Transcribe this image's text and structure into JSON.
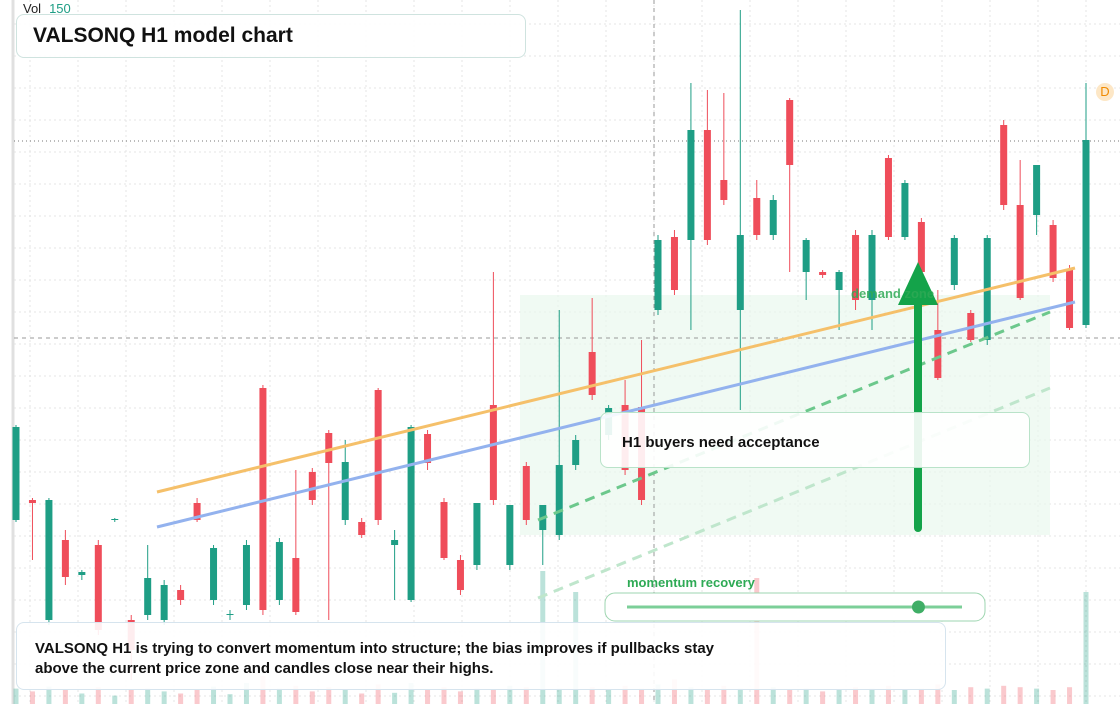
{
  "chart_data": {
    "type": "candlestick",
    "title": "VALSONQ H1 model chart",
    "volume_label": "Vol",
    "volume_value": 150,
    "badge": "D",
    "ylim": [
      60,
      130
    ],
    "volume_lim": [
      0,
      200
    ],
    "up_color": "#1e9e85",
    "down_color": "#ef4d5a",
    "grid": true,
    "crosshair": 96.2,
    "open": [
      78,
      80,
      68,
      76,
      72.5,
      75.5,
      78,
      68,
      68.5,
      68,
      71,
      79.7,
      70,
      68.5,
      69.5,
      91.2,
      70,
      74.2,
      82.8,
      86.7,
      78,
      77.8,
      91,
      75.5,
      70,
      86.6,
      79.8,
      74,
      73.5,
      89.5,
      73.5,
      83.4,
      77,
      76.5,
      83.5,
      94.8,
      86.5,
      89.5,
      89.3,
      99,
      106.3,
      106,
      117,
      112,
      99,
      110.2,
      106.5,
      120,
      102.8,
      102.8,
      101,
      106.5,
      100,
      114.2,
      106.3,
      107.8,
      97,
      101.5,
      98.7,
      96,
      117.5,
      109.5,
      108.5,
      107.5,
      103,
      97.5
    ],
    "high": [
      87.5,
      80.2,
      80.2,
      77,
      73,
      76,
      78.2,
      68.5,
      75.5,
      72,
      71.5,
      80.2,
      75.5,
      69,
      76,
      91.5,
      76.2,
      83,
      83.2,
      87,
      86,
      78.2,
      91.2,
      77,
      87.5,
      87,
      80.2,
      74.5,
      79.7,
      102.8,
      79.5,
      83.8,
      79.5,
      99,
      86.5,
      100.2,
      89.5,
      92,
      96,
      106.5,
      107,
      121.7,
      121,
      120.7,
      129,
      112,
      110.5,
      120.2,
      106.2,
      103,
      103,
      107,
      107,
      114.5,
      112,
      108.2,
      101,
      106.5,
      99,
      106.5,
      118,
      114,
      113.5,
      108,
      103.5,
      121.7
    ],
    "low": [
      77.8,
      74,
      67.5,
      71.5,
      72,
      66.5,
      77.8,
      62,
      68,
      67.5,
      69.5,
      77.8,
      69.5,
      68,
      69,
      68.5,
      69.5,
      68.5,
      79.5,
      68,
      77.5,
      76.2,
      77.5,
      70,
      69.8,
      83,
      74,
      70.5,
      73,
      79.5,
      73,
      77.5,
      73.5,
      76,
      83,
      90,
      86,
      82.5,
      79.5,
      98.5,
      100.5,
      97,
      105.5,
      109.5,
      89,
      106,
      106,
      102.8,
      100,
      102.2,
      97,
      99,
      97,
      106,
      106,
      102.5,
      92,
      101,
      95.8,
      95.5,
      109,
      100,
      106.5,
      101.8,
      97,
      97.2
    ],
    "close": [
      87.3,
      79.7,
      80,
      72.3,
      72.8,
      67,
      78.1,
      65,
      72.2,
      71.5,
      70,
      78,
      75.2,
      68.6,
      75.5,
      69,
      75.8,
      68.8,
      80,
      83.7,
      83.8,
      76.5,
      78,
      76,
      87.3,
      83.7,
      74.2,
      71,
      79.7,
      80,
      79.5,
      78,
      79.5,
      83.5,
      86,
      90.5,
      89.2,
      83,
      80,
      106,
      101,
      117,
      106,
      110,
      106.5,
      106.5,
      110,
      113.5,
      106,
      102.5,
      102.8,
      100,
      106.5,
      106.3,
      111.7,
      102.8,
      92.2,
      106.2,
      96,
      106.2,
      109.5,
      100.2,
      113.5,
      102.2,
      97.2,
      116
    ],
    "volume": [
      22,
      18,
      25,
      20,
      15,
      24,
      12,
      20,
      22,
      18,
      15,
      20,
      25,
      14,
      30,
      40,
      22,
      26,
      18,
      24,
      20,
      15,
      28,
      16,
      30,
      20,
      24,
      18,
      22,
      20,
      26,
      24,
      190,
      22,
      160,
      24,
      20,
      26,
      22,
      28,
      35,
      24,
      20,
      26,
      22,
      180,
      24,
      20,
      22,
      18,
      20,
      24,
      22,
      26,
      20,
      22,
      28,
      20,
      24,
      22,
      26,
      24,
      22,
      20,
      24,
      160
    ],
    "trend_lines": [
      {
        "color": "#f5c06a",
        "style": "solid",
        "values": [
          80.8,
          103.2
        ]
      },
      {
        "color": "#93b2ee",
        "style": "solid",
        "values": [
          77.3,
          99.8
        ]
      },
      {
        "color": "#6cc88c",
        "style": "dashed",
        "values": [
          78,
          98.8
        ]
      },
      {
        "color": "#bfe6cc",
        "style": "dashed",
        "values": [
          70.2,
          91.2
        ]
      }
    ],
    "demand_zone": {
      "label": "demand zone",
      "top": 100.5,
      "bottom": 76.5
    },
    "callout": "H1 buyers need acceptance",
    "slider": {
      "label": "momentum recovery",
      "value": 87
    },
    "note": [
      "VALSONQ H1 is trying to convert momentum into structure; the bias improves if pullbacks stay",
      "above the current price zone and candles close near their highs."
    ]
  }
}
